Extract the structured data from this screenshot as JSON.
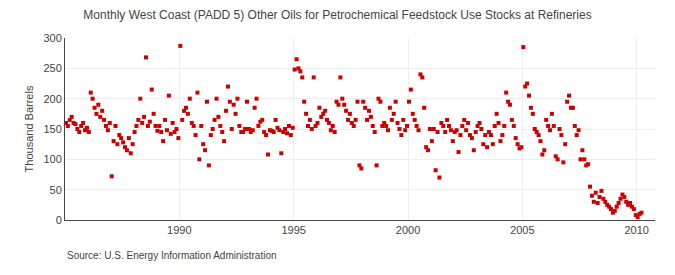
{
  "chart_data": {
    "type": "scatter",
    "title": "Monthly West Coast (PADD 5) Other Oils for Petrochemical Feedstock Use Stocks at Refineries",
    "y_label": "Thousand Barrels",
    "annotations": [
      "Source: U.S. Energy Information Administration"
    ],
    "color": "#cc0000",
    "marker": "square",
    "grid": true,
    "xlim": [
      1985.0,
      2010.8
    ],
    "xticks": [
      1990,
      1995,
      2000,
      2005,
      2010
    ],
    "ylim": [
      0,
      300
    ],
    "yticks": [
      0,
      50,
      100,
      150,
      200,
      250,
      300
    ],
    "x": [
      1985.042,
      1985.125,
      1985.208,
      1985.292,
      1985.375,
      1985.458,
      1985.542,
      1985.625,
      1985.708,
      1985.792,
      1985.875,
      1985.958,
      1986.042,
      1986.125,
      1986.208,
      1986.292,
      1986.375,
      1986.458,
      1986.542,
      1986.625,
      1986.708,
      1986.792,
      1986.875,
      1986.958,
      1987.042,
      1987.125,
      1987.208,
      1987.292,
      1987.375,
      1987.458,
      1987.542,
      1987.625,
      1987.708,
      1987.792,
      1987.875,
      1987.958,
      1988.042,
      1988.125,
      1988.208,
      1988.292,
      1988.375,
      1988.458,
      1988.542,
      1988.625,
      1988.708,
      1988.792,
      1988.875,
      1988.958,
      1989.042,
      1989.125,
      1989.208,
      1989.292,
      1989.375,
      1989.458,
      1989.542,
      1989.625,
      1989.708,
      1989.792,
      1989.875,
      1989.958,
      1990.042,
      1990.125,
      1990.208,
      1990.292,
      1990.375,
      1990.458,
      1990.542,
      1990.625,
      1990.708,
      1990.792,
      1990.875,
      1990.958,
      1991.042,
      1991.125,
      1991.208,
      1991.292,
      1991.375,
      1991.458,
      1991.542,
      1991.625,
      1991.708,
      1991.792,
      1991.875,
      1991.958,
      1992.042,
      1992.125,
      1992.208,
      1992.292,
      1992.375,
      1992.458,
      1992.542,
      1992.625,
      1992.708,
      1992.792,
      1992.875,
      1992.958,
      1993.042,
      1993.125,
      1993.208,
      1993.292,
      1993.375,
      1993.458,
      1993.542,
      1993.625,
      1993.708,
      1993.792,
      1993.875,
      1993.958,
      1994.042,
      1994.125,
      1994.208,
      1994.292,
      1994.375,
      1994.458,
      1994.542,
      1994.625,
      1994.708,
      1994.792,
      1994.875,
      1994.958,
      1995.042,
      1995.125,
      1995.208,
      1995.292,
      1995.375,
      1995.458,
      1995.542,
      1995.625,
      1995.708,
      1995.792,
      1995.875,
      1995.958,
      1996.042,
      1996.125,
      1996.208,
      1996.292,
      1996.375,
      1996.458,
      1996.542,
      1996.625,
      1996.708,
      1996.792,
      1996.875,
      1996.958,
      1997.042,
      1997.125,
      1997.208,
      1997.292,
      1997.375,
      1997.458,
      1997.542,
      1997.625,
      1997.708,
      1997.792,
      1997.875,
      1997.958,
      1998.042,
      1998.125,
      1998.208,
      1998.292,
      1998.375,
      1998.458,
      1998.542,
      1998.625,
      1998.708,
      1998.792,
      1998.875,
      1998.958,
      1999.042,
      1999.125,
      1999.208,
      1999.292,
      1999.375,
      1999.458,
      1999.542,
      1999.625,
      1999.708,
      1999.792,
      1999.875,
      1999.958,
      2000.042,
      2000.125,
      2000.208,
      2000.292,
      2000.375,
      2000.458,
      2000.542,
      2000.625,
      2000.708,
      2000.792,
      2000.875,
      2000.958,
      2001.042,
      2001.125,
      2001.208,
      2001.292,
      2001.375,
      2001.458,
      2001.542,
      2001.625,
      2001.708,
      2001.792,
      2001.875,
      2001.958,
      2002.042,
      2002.125,
      2002.208,
      2002.292,
      2002.375,
      2002.458,
      2002.542,
      2002.625,
      2002.708,
      2002.792,
      2002.875,
      2002.958,
      2003.042,
      2003.125,
      2003.208,
      2003.292,
      2003.375,
      2003.458,
      2003.542,
      2003.625,
      2003.708,
      2003.792,
      2003.875,
      2003.958,
      2004.042,
      2004.125,
      2004.208,
      2004.292,
      2004.375,
      2004.458,
      2004.542,
      2004.625,
      2004.708,
      2004.792,
      2004.875,
      2004.958,
      2005.042,
      2005.125,
      2005.208,
      2005.292,
      2005.375,
      2005.458,
      2005.542,
      2005.625,
      2005.708,
      2005.792,
      2005.875,
      2005.958,
      2006.042,
      2006.125,
      2006.208,
      2006.292,
      2006.375,
      2006.458,
      2006.542,
      2006.625,
      2006.708,
      2006.792,
      2006.875,
      2006.958,
      2007.042,
      2007.125,
      2007.208,
      2007.292,
      2007.375,
      2007.458,
      2007.542,
      2007.625,
      2007.708,
      2007.792,
      2007.875,
      2007.958,
      2008.042,
      2008.125,
      2008.208,
      2008.292,
      2008.375,
      2008.458,
      2008.542,
      2008.625,
      2008.708,
      2008.792,
      2008.875,
      2008.958,
      2009.042,
      2009.125,
      2009.208,
      2009.292,
      2009.375,
      2009.458,
      2009.542,
      2009.625,
      2009.708,
      2009.792,
      2009.875,
      2009.958,
      2010.042,
      2010.125,
      2010.208
    ],
    "values": [
      160,
      155,
      165,
      170,
      160,
      158,
      150,
      145,
      155,
      160,
      148,
      152,
      145,
      210,
      200,
      185,
      175,
      190,
      170,
      180,
      165,
      155,
      148,
      160,
      72,
      130,
      155,
      125,
      140,
      135,
      128,
      120,
      115,
      135,
      110,
      125,
      145,
      155,
      165,
      200,
      160,
      170,
      268,
      155,
      162,
      215,
      175,
      155,
      147,
      155,
      145,
      130,
      165,
      148,
      205,
      142,
      160,
      145,
      150,
      135,
      287,
      165,
      180,
      185,
      175,
      200,
      160,
      155,
      140,
      210,
      100,
      155,
      125,
      115,
      195,
      90,
      140,
      150,
      165,
      200,
      170,
      155,
      145,
      130,
      180,
      220,
      195,
      150,
      190,
      175,
      200,
      155,
      145,
      145,
      150,
      195,
      150,
      145,
      148,
      185,
      200,
      155,
      162,
      165,
      145,
      140,
      108,
      148,
      147,
      145,
      165,
      152,
      148,
      110,
      145,
      150,
      143,
      155,
      140,
      152,
      248,
      265,
      250,
      245,
      235,
      195,
      175,
      155,
      165,
      150,
      235,
      155,
      160,
      185,
      170,
      175,
      180,
      165,
      160,
      148,
      155,
      145,
      195,
      190,
      235,
      200,
      190,
      180,
      165,
      175,
      160,
      155,
      165,
      195,
      90,
      85,
      195,
      185,
      165,
      180,
      170,
      155,
      145,
      90,
      200,
      195,
      155,
      160,
      155,
      148,
      185,
      165,
      175,
      195,
      160,
      150,
      140,
      165,
      148,
      155,
      195,
      215,
      175,
      165,
      155,
      148,
      240,
      235,
      185,
      120,
      115,
      150,
      130,
      150,
      82,
      145,
      70,
      160,
      155,
      145,
      165,
      155,
      148,
      130,
      145,
      148,
      112,
      140,
      155,
      165,
      148,
      160,
      140,
      135,
      115,
      145,
      155,
      160,
      150,
      125,
      140,
      120,
      145,
      140,
      125,
      155,
      175,
      160,
      130,
      140,
      155,
      210,
      195,
      190,
      165,
      155,
      135,
      125,
      118,
      120,
      285,
      220,
      225,
      205,
      185,
      175,
      150,
      145,
      140,
      130,
      108,
      115,
      165,
      155,
      148,
      175,
      155,
      105,
      100,
      150,
      140,
      95,
      125,
      195,
      205,
      185,
      185,
      155,
      140,
      148,
      100,
      115,
      100,
      90,
      92,
      55,
      40,
      30,
      45,
      28,
      38,
      48,
      35,
      30,
      25,
      22,
      18,
      12,
      15,
      22,
      28,
      35,
      42,
      38,
      30,
      25,
      28,
      22,
      18,
      8,
      5,
      10,
      12
    ]
  }
}
